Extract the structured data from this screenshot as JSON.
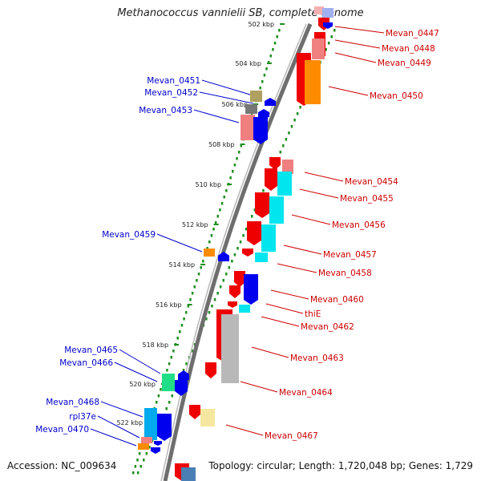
{
  "header": {
    "title": "Methanococcus vannielii SB, complete genome"
  },
  "footer": {
    "accession": "Accession: NC_009634",
    "summary": "Topology: circular; Length: 1,720,048 bp; Genes: 1,729"
  },
  "colors": {
    "right_label": "#cc0000",
    "left_label": "#0000cc",
    "ruler_dots": "#1f8f1f",
    "backbone": "#7f7f7f"
  },
  "ruler": {
    "ticks": [
      "502 kbp",
      "504 kbp",
      "506 kbp",
      "508 kbp",
      "510 kbp",
      "512 kbp",
      "514 kbp",
      "516 kbp",
      "518 kbp",
      "520 kbp",
      "522 kbp"
    ]
  },
  "labels": {
    "right": [
      "Mevan_0447",
      "Mevan_0448",
      "Mevan_0449",
      "Mevan_0450",
      "Mevan_0454",
      "Mevan_0455",
      "Mevan_0456",
      "Mevan_0457",
      "Mevan_0458",
      "Mevan_0460",
      "thiE",
      "Mevan_0462",
      "Mevan_0463",
      "Mevan_0464",
      "Mevan_0467"
    ],
    "left": [
      "Mevan_0451",
      "Mevan_0452",
      "Mevan_0453",
      "Mevan_0459",
      "Mevan_0465",
      "Mevan_0466",
      "Mevan_0468",
      "rpl37e",
      "Mevan_0470"
    ]
  }
}
